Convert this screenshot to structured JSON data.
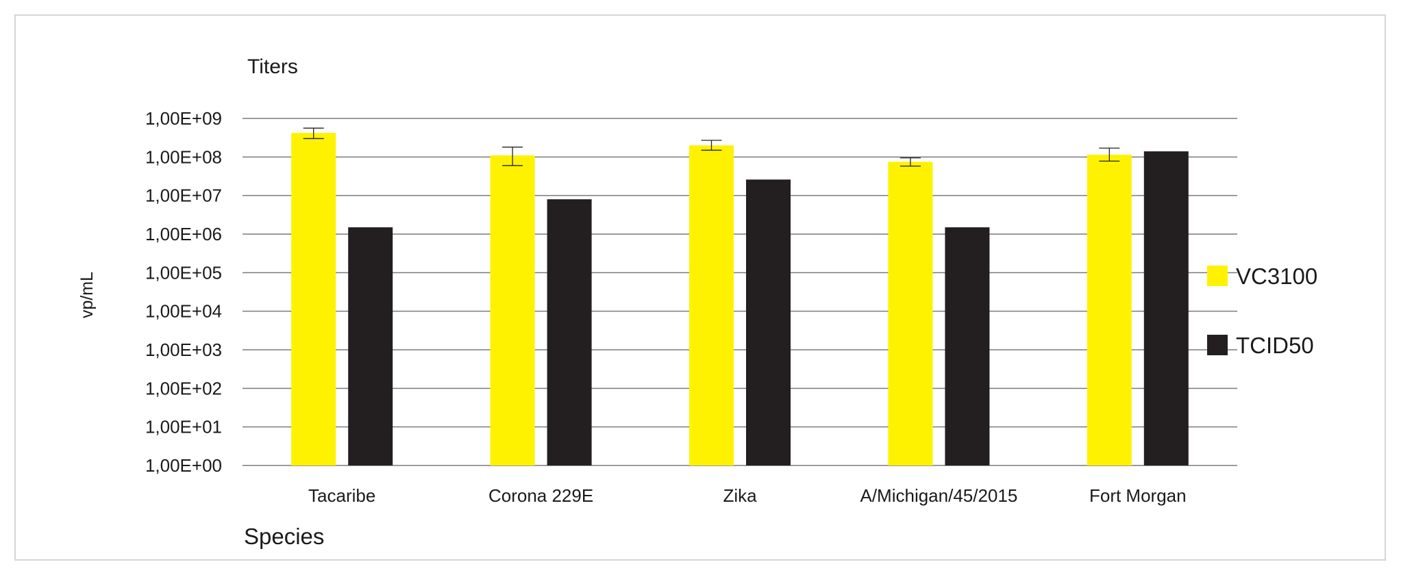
{
  "chart_data": {
    "type": "bar",
    "title": "Titers",
    "xlabel": "Species",
    "ylabel": "vp/mL",
    "y_scale": "log",
    "ylim": [
      1,
      1000000000
    ],
    "y_ticks": [
      {
        "value": 1,
        "label": "1,00E+00"
      },
      {
        "value": 10,
        "label": "1,00E+01"
      },
      {
        "value": 100,
        "label": "1,00E+02"
      },
      {
        "value": 1000,
        "label": "1,00E+03"
      },
      {
        "value": 10000,
        "label": "1,00E+04"
      },
      {
        "value": 100000,
        "label": "1,00E+05"
      },
      {
        "value": 1000000,
        "label": "1,00E+06"
      },
      {
        "value": 10000000,
        "label": "1,00E+07"
      },
      {
        "value": 100000000,
        "label": "1,00E+08"
      },
      {
        "value": 1000000000,
        "label": "1,00E+09"
      }
    ],
    "grid": true,
    "legend_position": "right",
    "categories": [
      "Tacaribe",
      "Corona 229E",
      "Zika",
      "A/Michigan/45/2015",
      "Fort Morgan"
    ],
    "series": [
      {
        "name": "VC3100",
        "color": "#fff200",
        "values": [
          420000000,
          110000000,
          200000000,
          75000000,
          115000000
        ],
        "error_low": [
          300000000,
          60000000,
          150000000,
          58000000,
          78000000
        ],
        "error_high": [
          560000000,
          180000000,
          270000000,
          95000000,
          170000000
        ]
      },
      {
        "name": "TCID50",
        "color": "#231f20",
        "values": [
          1500000,
          8000000,
          26000000,
          1500000,
          140000000
        ]
      }
    ]
  }
}
